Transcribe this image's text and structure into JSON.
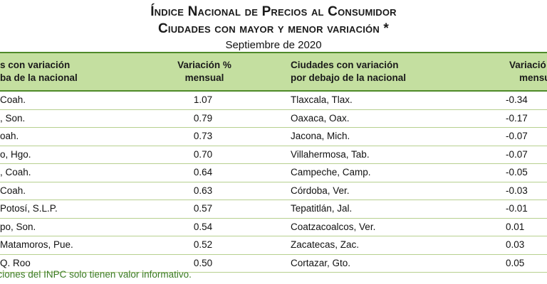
{
  "title_line1": "Índice Nacional de Precios al Consumidor",
  "title_line2": "Ciudades con mayor y menor variación *",
  "subtitle": "Septiembre de 2020",
  "headers": {
    "col1_l1": "s con variación",
    "col1_l2": "ba de la nacional",
    "col2_l1": "Variación %",
    "col2_l2": "mensual",
    "col3_l1": "Ciudades con variación",
    "col3_l2": "por debajo de la nacional",
    "col4_l1": "Variació",
    "col4_l2": "mensu"
  },
  "rows": [
    {
      "city_above": "Coah.",
      "var_above": "1.07",
      "city_below": "Tlaxcala, Tlax.",
      "var_below": "-0.34"
    },
    {
      "city_above": ", Son.",
      "var_above": "0.79",
      "city_below": "Oaxaca, Oax.",
      "var_below": "-0.17"
    },
    {
      "city_above": "oah.",
      "var_above": "0.73",
      "city_below": "Jacona, Mich.",
      "var_below": "-0.07"
    },
    {
      "city_above": "o, Hgo.",
      "var_above": "0.70",
      "city_below": "Villahermosa, Tab.",
      "var_below": "-0.07"
    },
    {
      "city_above": ", Coah.",
      "var_above": "0.64",
      "city_below": "Campeche, Camp.",
      "var_below": "-0.05"
    },
    {
      "city_above": "Coah.",
      "var_above": "0.63",
      "city_below": "Córdoba, Ver.",
      "var_below": "-0.03"
    },
    {
      "city_above": "Potosí, S.L.P.",
      "var_above": "0.57",
      "city_below": "Tepatitlán, Jal.",
      "var_below": "-0.01"
    },
    {
      "city_above": "po, Son.",
      "var_above": "0.54",
      "city_below": "Coatzacoalcos, Ver.",
      "var_below": "0.01"
    },
    {
      "city_above": "Matamoros, Pue.",
      "var_above": "0.52",
      "city_below": "Zacatecas, Zac.",
      "var_below": "0.03"
    },
    {
      "city_above": "Q. Roo",
      "var_above": "0.50",
      "city_below": "Cortazar, Gto.",
      "var_below": "0.05"
    }
  ],
  "footnote": "gregaciones del INPC solo tienen valor informativo."
}
